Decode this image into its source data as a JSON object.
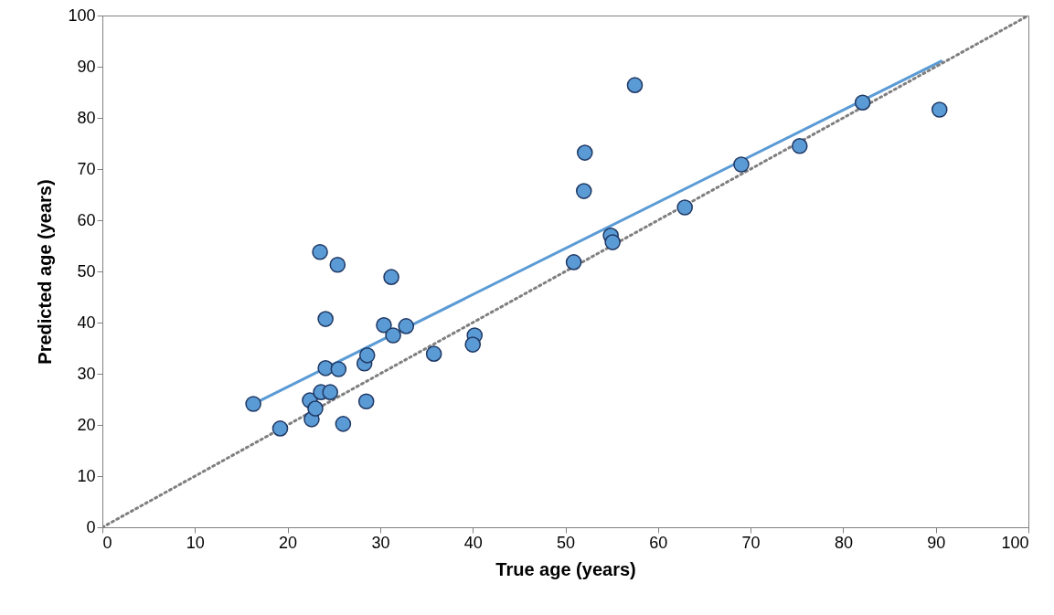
{
  "chart_data": {
    "type": "scatter",
    "xlabel": "True age (years)",
    "ylabel": "Predicted age (years)",
    "xlim": [
      0,
      100
    ],
    "ylim": [
      0,
      100
    ],
    "xticks": [
      0,
      10,
      20,
      30,
      40,
      50,
      60,
      70,
      80,
      90,
      100
    ],
    "yticks": [
      0,
      10,
      20,
      30,
      40,
      50,
      60,
      70,
      80,
      90,
      100
    ],
    "marker": "circle",
    "series": [
      {
        "color": "#5b9bd5",
        "x": [
          16.3,
          19.2,
          22.4,
          22.6,
          23.0,
          23.6,
          23.5,
          24.1,
          24.1,
          24.6,
          25.4,
          25.5,
          26.0,
          28.3,
          28.6,
          28.5,
          30.4,
          31.2,
          31.4,
          32.8,
          35.8,
          40.2,
          40.0,
          50.9,
          52.0,
          52.1,
          54.9,
          55.1,
          57.5,
          62.9,
          69.0,
          75.3,
          82.1,
          90.4
        ],
        "values": [
          24.1,
          19.3,
          24.8,
          21.1,
          23.2,
          26.4,
          53.8,
          40.7,
          31.1,
          26.4,
          51.3,
          30.9,
          20.2,
          32.0,
          33.6,
          24.6,
          39.5,
          48.9,
          37.5,
          39.3,
          33.9,
          37.5,
          35.7,
          51.8,
          65.7,
          73.2,
          57.0,
          55.7,
          86.4,
          62.5,
          70.9,
          74.5,
          83.0,
          81.6
        ]
      },
      {
        "type": "line",
        "color": "#5b9bd5",
        "line_style": "solid",
        "marker": "none",
        "x": [
          16.3,
          90.6
        ],
        "values": [
          24.1,
          91.1
        ]
      },
      {
        "type": "line",
        "color": "#7f7f7f",
        "line_style": "dotted",
        "marker": "none",
        "x": [
          0,
          100
        ],
        "values": [
          0,
          100
        ]
      }
    ]
  }
}
